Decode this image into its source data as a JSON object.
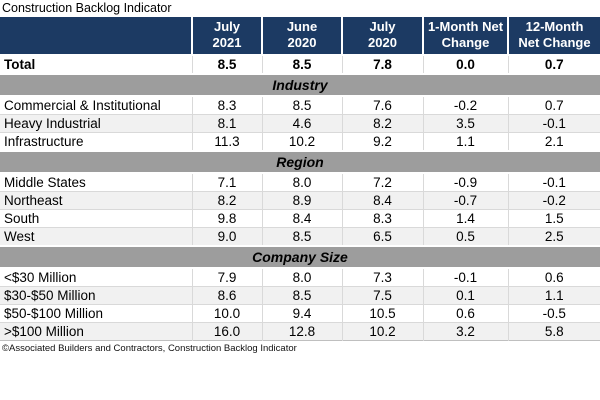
{
  "colors": {
    "header_bg": "#1C3A63",
    "header_text": "#FFFFFF",
    "section_band_bg": "#9D9D9D",
    "row_stripe_bg": "#F1F1F1",
    "grid_line": "#D9D9D9",
    "table_edge": "#BFBFBF"
  },
  "chart_data": {
    "type": "table",
    "title": "Construction Backlog Indicator",
    "source": "©Associated Builders and Contractors, Construction Backlog Indicator",
    "column_headers": [
      "",
      "July\n2021",
      "June\n2020",
      "July\n2020",
      "1-Month Net\nChange",
      "12-Month\nNet Change"
    ],
    "columns": [
      "July 2021",
      "June 2020",
      "July 2020",
      "1-Month Net Change",
      "12-Month Net Change"
    ],
    "total": {
      "label": "Total",
      "values": [
        8.5,
        8.5,
        7.8,
        0.0,
        0.7
      ]
    },
    "sections": [
      {
        "name": "Industry",
        "rows": [
          {
            "label": "Commercial & Institutional",
            "values": [
              8.3,
              8.5,
              7.6,
              -0.2,
              0.7
            ]
          },
          {
            "label": "Heavy Industrial",
            "values": [
              8.1,
              4.6,
              8.2,
              3.5,
              -0.1
            ]
          },
          {
            "label": "Infrastructure",
            "values": [
              11.3,
              10.2,
              9.2,
              1.1,
              2.1
            ]
          }
        ]
      },
      {
        "name": "Region",
        "rows": [
          {
            "label": "Middle States",
            "values": [
              7.1,
              8.0,
              7.2,
              -0.9,
              -0.1
            ]
          },
          {
            "label": "Northeast",
            "values": [
              8.2,
              8.9,
              8.4,
              -0.7,
              -0.2
            ]
          },
          {
            "label": "South",
            "values": [
              9.8,
              8.4,
              8.3,
              1.4,
              1.5
            ]
          },
          {
            "label": "West",
            "values": [
              9.0,
              8.5,
              6.5,
              0.5,
              2.5
            ]
          }
        ]
      },
      {
        "name": "Company Size",
        "rows": [
          {
            "label": "<$30 Million",
            "values": [
              7.9,
              8.0,
              7.3,
              -0.1,
              0.6
            ]
          },
          {
            "label": "$30-$50 Million",
            "values": [
              8.6,
              8.5,
              7.5,
              0.1,
              1.1
            ]
          },
          {
            "label": "$50-$100 Million",
            "values": [
              10.0,
              9.4,
              10.5,
              0.6,
              -0.5
            ]
          },
          {
            "label": ">$100 Million",
            "values": [
              16.0,
              12.8,
              10.2,
              3.2,
              5.8
            ]
          }
        ]
      }
    ]
  }
}
